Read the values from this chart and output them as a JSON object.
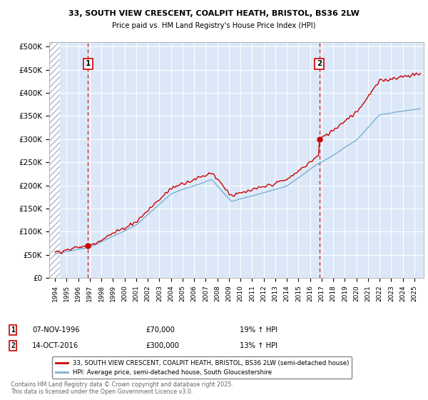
{
  "title1": "33, SOUTH VIEW CRESCENT, COALPIT HEATH, BRISTOL, BS36 2LW",
  "title2": "Price paid vs. HM Land Registry's House Price Index (HPI)",
  "legend_label1": "33, SOUTH VIEW CRESCENT, COALPIT HEATH, BRISTOL, BS36 2LW (semi-detached house)",
  "legend_label2": "HPI: Average price, semi-detached house, South Gloucestershire",
  "annotation1_date": "07-NOV-1996",
  "annotation1_price": "£70,000",
  "annotation1_hpi": "19% ↑ HPI",
  "annotation1_year": 1996.85,
  "annotation1_value": 70000,
  "annotation2_date": "14-OCT-2016",
  "annotation2_price": "£300,000",
  "annotation2_hpi": "13% ↑ HPI",
  "annotation2_year": 2016.79,
  "annotation2_value": 300000,
  "ylim": [
    0,
    510000
  ],
  "xlim_start": 1993.5,
  "xlim_end": 2025.8,
  "yticks": [
    0,
    50000,
    100000,
    150000,
    200000,
    250000,
    300000,
    350000,
    400000,
    450000,
    500000
  ],
  "ytick_labels": [
    "£0",
    "£50K",
    "£100K",
    "£150K",
    "£200K",
    "£250K",
    "£300K",
    "£350K",
    "£400K",
    "£450K",
    "£500K"
  ],
  "hatch_color": "#b0b8c8",
  "plot_bg": "#dce8f8",
  "grid_color": "#ffffff",
  "line1_color": "#cc0000",
  "line2_color": "#7ab0d4",
  "footer_text": "Contains HM Land Registry data © Crown copyright and database right 2025.\nThis data is licensed under the Open Government Licence v3.0."
}
